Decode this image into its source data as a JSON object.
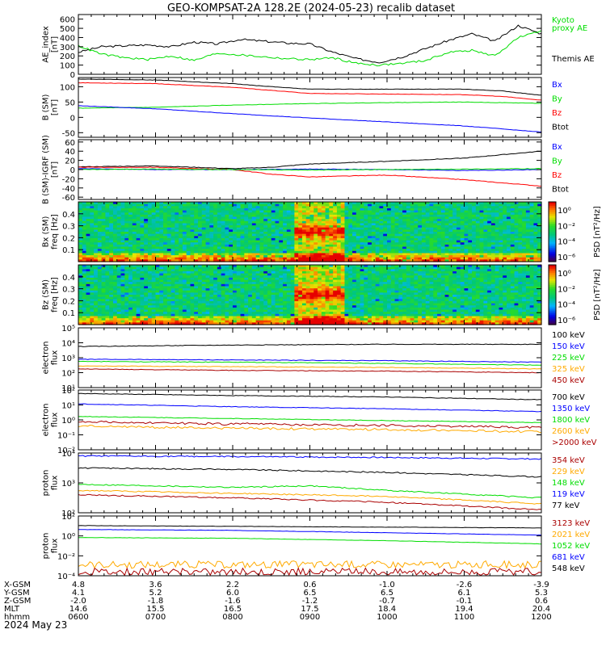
{
  "title": "GEO-KOMPSAT-2A 128.2E (2024-05-23) recalib dataset",
  "date_label": "2024 May 23",
  "colors": {
    "black": "#000000",
    "green": "#00dd00",
    "blue": "#0000ff",
    "red": "#ff0000",
    "orange": "#ffaa00",
    "dark_red": "#aa0000"
  },
  "ephemeris": {
    "labels": [
      "X-GSM",
      "Y-GSM",
      "Z-GSM",
      "MLT",
      "hhmm"
    ],
    "columns": [
      {
        "values": [
          "4.8",
          "4.1",
          "-2.0",
          "14.6",
          "0600"
        ]
      },
      {
        "values": [
          "3.6",
          "5.2",
          "-1.8",
          "15.5",
          "0700"
        ]
      },
      {
        "values": [
          "2.2",
          "6.0",
          "-1.6",
          "16.5",
          "0800"
        ]
      },
      {
        "values": [
          "0.6",
          "6.5",
          "-1.2",
          "17.5",
          "0900"
        ]
      },
      {
        "values": [
          "-1.0",
          "6.5",
          "-0.7",
          "18.4",
          "1000"
        ]
      },
      {
        "values": [
          "-2.6",
          "6.1",
          "-0.1",
          "19.4",
          "1100"
        ]
      },
      {
        "values": [
          "-3.9",
          "5.3",
          "0.6",
          "20.4",
          "1200"
        ]
      }
    ]
  },
  "chart_data": [
    {
      "type": "line",
      "ylabel_lines": [
        "AE_index",
        "[nT]"
      ],
      "yticks": [
        "600",
        "500",
        "400",
        "300",
        "200",
        "100",
        "0"
      ],
      "ylim": [
        0,
        650
      ],
      "legend": [
        {
          "text": "Kyoto",
          "color": "#00dd00"
        },
        {
          "text": "proxy AE",
          "color": "#00dd00"
        },
        {
          "text": "Themis AE",
          "color": "#000000"
        }
      ],
      "series": [
        {
          "color": "#000000",
          "x": [
            6.0,
            6.3,
            6.6,
            6.9,
            7.2,
            7.5,
            7.8,
            8.1,
            8.4,
            8.7,
            9.0,
            9.3,
            9.6,
            9.9,
            10.2,
            10.5,
            10.8,
            11.1,
            11.4,
            11.7,
            12.0
          ],
          "values": [
            240,
            300,
            310,
            320,
            300,
            350,
            330,
            380,
            360,
            340,
            330,
            240,
            170,
            130,
            190,
            280,
            370,
            440,
            360,
            530,
            440
          ]
        },
        {
          "color": "#00dd00",
          "x": [
            6.0,
            6.3,
            6.6,
            6.9,
            7.2,
            7.5,
            7.8,
            8.1,
            8.4,
            8.7,
            9.0,
            9.3,
            9.6,
            9.9,
            10.2,
            10.5,
            10.8,
            11.1,
            11.4,
            11.7,
            12.0
          ],
          "values": [
            310,
            220,
            180,
            160,
            200,
            150,
            230,
            210,
            190,
            170,
            160,
            180,
            120,
            100,
            120,
            150,
            240,
            260,
            200,
            400,
            470
          ]
        }
      ]
    },
    {
      "type": "line",
      "ylabel_lines": [
        "B (SM)",
        "[nT]"
      ],
      "yticks": [
        "100",
        "50",
        "0",
        "-50"
      ],
      "ylim": [
        -65,
        130
      ],
      "legend": [
        {
          "text": "Bx",
          "color": "#0000ff"
        },
        {
          "text": "By",
          "color": "#00dd00"
        },
        {
          "text": "Bz",
          "color": "#ff0000"
        },
        {
          "text": "Btot",
          "color": "#000000"
        }
      ],
      "series": [
        {
          "color": "#000000",
          "x": [
            6.0,
            7.0,
            8.0,
            8.5,
            9.0,
            10.0,
            11.0,
            11.5,
            12.0
          ],
          "values": [
            125,
            122,
            110,
            100,
            92,
            92,
            92,
            86,
            72
          ]
        },
        {
          "color": "#ff0000",
          "x": [
            6.0,
            7.0,
            8.0,
            8.5,
            9.0,
            10.0,
            11.0,
            11.5,
            12.0
          ],
          "values": [
            113,
            110,
            98,
            88,
            78,
            76,
            74,
            68,
            56
          ]
        },
        {
          "color": "#00dd00",
          "x": [
            6.0,
            7.0,
            8.0,
            9.0,
            10.0,
            11.0,
            12.0
          ],
          "values": [
            30,
            33,
            40,
            45,
            48,
            50,
            46
          ]
        },
        {
          "color": "#0000ff",
          "x": [
            6.0,
            7.0,
            8.0,
            9.0,
            10.0,
            11.0,
            12.0
          ],
          "values": [
            38,
            28,
            12,
            -2,
            -15,
            -28,
            -48
          ]
        }
      ]
    },
    {
      "type": "line",
      "ylabel_lines": [
        "B (SM)-IGRF (SM)",
        "[nT]"
      ],
      "yticks": [
        "60",
        "40",
        "20",
        "0",
        "-20",
        "-40",
        "-60"
      ],
      "ylim": [
        -65,
        65
      ],
      "legend": [
        {
          "text": "Bx",
          "color": "#0000ff"
        },
        {
          "text": "By",
          "color": "#00dd00"
        },
        {
          "text": "Bz",
          "color": "#ff0000"
        },
        {
          "text": "Btot",
          "color": "#000000"
        }
      ],
      "series": [
        {
          "color": "#000000",
          "x": [
            6.0,
            7.0,
            8.0,
            8.5,
            9.0,
            10.0,
            11.0,
            12.0
          ],
          "values": [
            6,
            8,
            2,
            5,
            12,
            18,
            25,
            40
          ]
        },
        {
          "color": "#ff0000",
          "x": [
            6.0,
            7.0,
            7.5,
            8.0,
            8.5,
            9.0,
            10.0,
            11.0,
            12.0
          ],
          "values": [
            5,
            5,
            2,
            0,
            -10,
            -16,
            -12,
            -22,
            -36
          ]
        },
        {
          "color": "#0000ff",
          "x": [
            6.0,
            7.0,
            8.0,
            9.0,
            10.0,
            11.0,
            12.0
          ],
          "values": [
            2,
            0,
            0,
            1,
            0,
            -2,
            0
          ]
        },
        {
          "color": "#00dd00",
          "x": [
            6.0,
            7.0,
            8.0,
            9.0,
            10.0,
            11.0,
            12.0
          ],
          "values": [
            0,
            1,
            0,
            -1,
            0,
            1,
            2
          ]
        }
      ]
    },
    {
      "type": "heatmap",
      "ylabel_lines": [
        "Bx (SM)",
        "freq [Hz]"
      ],
      "yticks": [
        "0.4",
        "0.3",
        "0.2",
        "0.1"
      ],
      "ylim": [
        0.0,
        0.5
      ],
      "colorbar_label": "PSD [nT²/Hz]",
      "colorbar_ticks": [
        "10⁰",
        "10⁻²",
        "10⁻⁴",
        "10⁻⁶"
      ],
      "enhancement": {
        "x_start": 8.8,
        "x_end": 9.45,
        "y_peak": 0.25
      }
    },
    {
      "type": "heatmap",
      "ylabel_lines": [
        "Bz (SM)",
        "freq [Hz]"
      ],
      "yticks": [
        "0.4",
        "0.3",
        "0.2",
        "0.1"
      ],
      "ylim": [
        0.0,
        0.5
      ],
      "colorbar_label": "PSD [nT²/Hz]",
      "colorbar_ticks": [
        "10⁰",
        "10⁻²",
        "10⁻⁴",
        "10⁻⁶"
      ],
      "enhancement": {
        "x_start": 8.8,
        "x_end": 9.45,
        "y_peak": 0.25
      }
    },
    {
      "type": "line",
      "log": true,
      "ylabel_lines": [
        "electron",
        "flux"
      ],
      "yticks": [
        "10⁵",
        "10⁴",
        "10³",
        "10²",
        "10¹"
      ],
      "ylim": [
        1,
        5
      ],
      "legend": [
        {
          "text": "100 keV",
          "color": "#000000"
        },
        {
          "text": "150 keV",
          "color": "#0000ff"
        },
        {
          "text": "225 keV",
          "color": "#00dd00"
        },
        {
          "text": "325 keV",
          "color": "#ffaa00"
        },
        {
          "text": "450 keV",
          "color": "#aa0000"
        }
      ],
      "series": [
        {
          "color": "#000000",
          "x": [
            6.0,
            8.0,
            10.0,
            12.0
          ],
          "values": [
            3.75,
            3.85,
            3.9,
            3.9
          ]
        },
        {
          "color": "#0000ff",
          "x": [
            6.0,
            8.0,
            10.0,
            12.0
          ],
          "values": [
            2.9,
            2.85,
            2.8,
            2.7
          ]
        },
        {
          "color": "#00dd00",
          "x": [
            6.0,
            8.0,
            10.0,
            12.0
          ],
          "values": [
            2.75,
            2.7,
            2.62,
            2.5
          ]
        },
        {
          "color": "#ffaa00",
          "x": [
            6.0,
            8.0,
            10.0,
            12.0
          ],
          "values": [
            2.45,
            2.4,
            2.35,
            2.25
          ]
        },
        {
          "color": "#aa0000",
          "x": [
            6.0,
            8.0,
            10.0,
            12.0
          ],
          "values": [
            2.25,
            2.15,
            2.1,
            2.0
          ]
        }
      ]
    },
    {
      "type": "line",
      "log": true,
      "ylabel_lines": [
        "electron",
        "flux"
      ],
      "yticks": [
        "10²",
        "10¹",
        "10⁰",
        "10⁻¹",
        "10⁻²"
      ],
      "ylim": [
        -2.3,
        2
      ],
      "legend": [
        {
          "text": "700 keV",
          "color": "#000000"
        },
        {
          "text": "1350 keV",
          "color": "#0000ff"
        },
        {
          "text": "1800 keV",
          "color": "#00dd00"
        },
        {
          "text": "2600 keV",
          "color": "#ffaa00"
        },
        {
          "text": ">2000 keV",
          "color": "#aa0000"
        }
      ],
      "series": [
        {
          "color": "#000000",
          "x": [
            6.0,
            8.0,
            10.0,
            12.0
          ],
          "values": [
            1.75,
            1.6,
            1.5,
            1.3
          ]
        },
        {
          "color": "#0000ff",
          "x": [
            6.0,
            8.0,
            10.0,
            12.0
          ],
          "values": [
            1.0,
            0.8,
            0.65,
            0.45
          ]
        },
        {
          "color": "#00dd00",
          "x": [
            6.0,
            8.0,
            10.0,
            12.0
          ],
          "values": [
            0.1,
            -0.05,
            -0.2,
            -0.35
          ]
        },
        {
          "color": "#aa0000",
          "x": [
            6.0,
            8.0,
            10.0,
            12.0
          ],
          "values": [
            -0.3,
            -0.45,
            -0.55,
            -0.7
          ]
        },
        {
          "color": "#ffaa00",
          "x": [
            6.0,
            8.0,
            10.0,
            12.0
          ],
          "values": [
            -0.6,
            -0.75,
            -0.85,
            -1.0
          ]
        }
      ]
    },
    {
      "type": "line",
      "log": true,
      "ylabel_lines": [
        "proton",
        "flux"
      ],
      "yticks": [
        "10⁴",
        "10³",
        "10²"
      ],
      "ylim": [
        2,
        4
      ],
      "legend": [
        {
          "text": "354 keV",
          "color": "#aa0000"
        },
        {
          "text": "229 keV",
          "color": "#ffaa00"
        },
        {
          "text": "148 keV",
          "color": "#00dd00"
        },
        {
          "text": "119 keV",
          "color": "#0000ff"
        },
        {
          "text": "77 keV",
          "color": "#000000"
        }
      ],
      "series": [
        {
          "color": "#0000ff",
          "x": [
            6.0,
            8.0,
            10.0,
            12.0
          ],
          "values": [
            3.9,
            3.88,
            3.85,
            3.8
          ]
        },
        {
          "color": "#000000",
          "x": [
            6.0,
            8.0,
            10.0,
            12.0
          ],
          "values": [
            3.5,
            3.45,
            3.35,
            3.2
          ]
        },
        {
          "color": "#00dd00",
          "x": [
            6.0,
            8.0,
            9.0,
            10.0,
            12.0
          ],
          "values": [
            2.95,
            2.85,
            2.9,
            2.75,
            2.5
          ]
        },
        {
          "color": "#ffaa00",
          "x": [
            6.0,
            8.0,
            10.0,
            12.0
          ],
          "values": [
            2.75,
            2.65,
            2.55,
            2.3
          ]
        },
        {
          "color": "#aa0000",
          "x": [
            6.0,
            8.0,
            10.0,
            12.0
          ],
          "values": [
            2.6,
            2.5,
            2.35,
            2.1
          ]
        }
      ]
    },
    {
      "type": "line",
      "log": true,
      "ylabel_lines": [
        "proton",
        "flux"
      ],
      "yticks": [
        "10²",
        "10⁰",
        "10⁻²",
        "10⁻⁴"
      ],
      "ylim": [
        -4.5,
        3
      ],
      "legend": [
        {
          "text": "3123 keV",
          "color": "#aa0000"
        },
        {
          "text": "2021 keV",
          "color": "#ffaa00"
        },
        {
          "text": "1052 keV",
          "color": "#00dd00"
        },
        {
          "text": "681 keV",
          "color": "#0000ff"
        },
        {
          "text": "548 keV",
          "color": "#000000"
        }
      ],
      "series": [
        {
          "color": "#000000",
          "x": [
            6.0,
            8.0,
            10.0,
            12.0
          ],
          "values": [
            1.8,
            1.7,
            1.6,
            1.5
          ]
        },
        {
          "color": "#0000ff",
          "x": [
            6.0,
            8.0,
            10.0,
            12.0
          ],
          "values": [
            1.3,
            1.2,
            0.9,
            0.6
          ]
        },
        {
          "color": "#00dd00",
          "x": [
            6.0,
            8.0,
            10.0,
            12.0
          ],
          "values": [
            0.3,
            0.2,
            -0.1,
            -0.5
          ]
        },
        {
          "color": "#ffaa00",
          "x": [
            6.0,
            8.0,
            10.0,
            12.0
          ],
          "values": [
            -3.1,
            -3.1,
            -3.1,
            -3.1
          ]
        },
        {
          "color": "#aa0000",
          "x": [
            6.0,
            8.0,
            10.0,
            12.0
          ],
          "values": [
            -4.0,
            -4.0,
            -4.0,
            -4.0
          ]
        }
      ]
    }
  ]
}
